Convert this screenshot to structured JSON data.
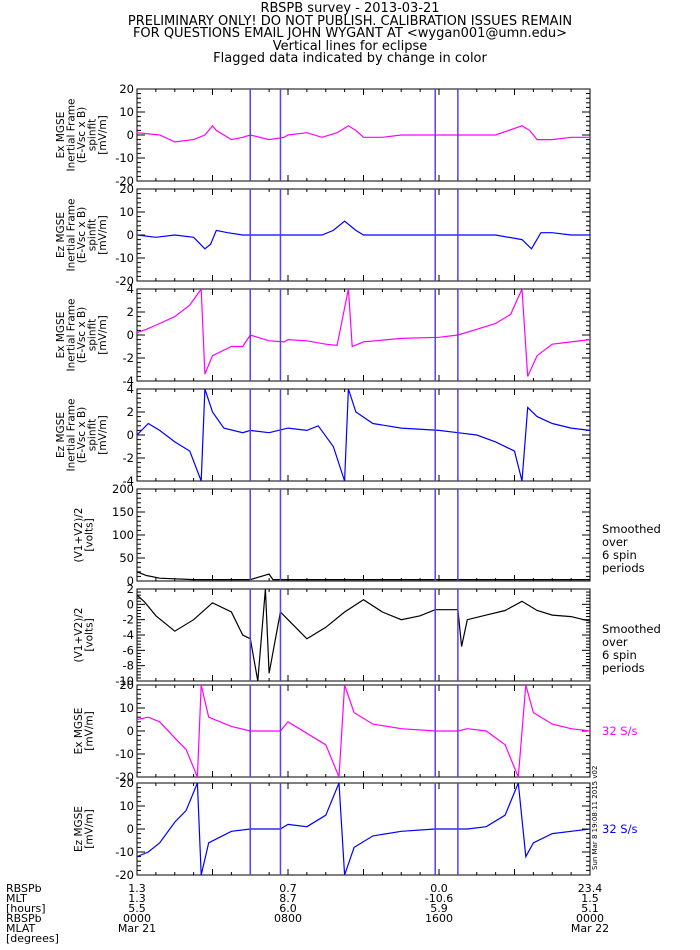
{
  "header": {
    "lines": [
      "RBSPB survey - 2013-03-21",
      "PRELIMINARY ONLY! DO NOT PUBLISH. CALIBRATION ISSUES REMAIN",
      "FOR QUESTIONS EMAIL JOHN WYGANT AT <wygan001@umn.edu>",
      "Vertical lines for eclipse",
      "Flagged data indicated by change in color"
    ]
  },
  "colors": {
    "magenta": "#ff00ff",
    "blue": "#0000ff",
    "black": "#000000",
    "eclipse": "#5a3cff"
  },
  "chart_data": {
    "type": "line",
    "x_unit": "hours UT",
    "xlim": [
      0,
      24
    ],
    "eclipse_lines": [
      6.0,
      7.6,
      15.8,
      17.0
    ],
    "panels": [
      {
        "id": "ex-inertial-20",
        "ylabel_lines": [
          "Ex MGSE",
          "Inertial Frame",
          "(E-Vsc x B)",
          "spinfit",
          "[mV/m]"
        ],
        "ylim": [
          -20,
          20
        ],
        "yticks": [
          "20",
          "10",
          "0",
          "-10",
          "-20"
        ],
        "color": "magenta",
        "series": [
          [
            0,
            1
          ],
          [
            1.2,
            0
          ],
          [
            2,
            -3
          ],
          [
            3,
            -2
          ],
          [
            3.6,
            0
          ],
          [
            4,
            4
          ],
          [
            4.2,
            2
          ],
          [
            5,
            -2
          ],
          [
            5.6,
            -1
          ],
          [
            6,
            0
          ],
          [
            7,
            -2
          ],
          [
            7.8,
            -1
          ],
          [
            8,
            0
          ],
          [
            9,
            1
          ],
          [
            9.8,
            -1
          ],
          [
            10.6,
            1
          ],
          [
            11.2,
            4
          ],
          [
            11.6,
            2
          ],
          [
            12,
            -1
          ],
          [
            13,
            -1
          ],
          [
            14,
            0
          ],
          [
            16,
            0
          ],
          [
            18,
            0
          ],
          [
            19,
            0
          ],
          [
            20.4,
            4
          ],
          [
            20.8,
            2
          ],
          [
            21.2,
            -2
          ],
          [
            22,
            -2
          ],
          [
            23,
            -1
          ],
          [
            24,
            -1
          ]
        ]
      },
      {
        "id": "ez-inertial-20",
        "ylabel_lines": [
          "Ez MGSE",
          "Inertial Frame",
          "(E-Vsc x B)",
          "spinfit",
          "[mV/m]"
        ],
        "ylim": [
          -20,
          20
        ],
        "yticks": [
          "20",
          "10",
          "0",
          "-10",
          "-20"
        ],
        "color": "blue",
        "series": [
          [
            0,
            0
          ],
          [
            1,
            -1
          ],
          [
            2,
            0
          ],
          [
            3,
            -1
          ],
          [
            3.6,
            -6
          ],
          [
            3.9,
            -4
          ],
          [
            4.2,
            2
          ],
          [
            4.8,
            1
          ],
          [
            5.6,
            0
          ],
          [
            6,
            0
          ],
          [
            7,
            0
          ],
          [
            8,
            0
          ],
          [
            9,
            0
          ],
          [
            9.8,
            0
          ],
          [
            10.4,
            2
          ],
          [
            11,
            6
          ],
          [
            11.6,
            2
          ],
          [
            12,
            0
          ],
          [
            14,
            0
          ],
          [
            16,
            0
          ],
          [
            18,
            0
          ],
          [
            19,
            0
          ],
          [
            20.4,
            -2
          ],
          [
            20.9,
            -6
          ],
          [
            21.4,
            1
          ],
          [
            22,
            1
          ],
          [
            23,
            0
          ],
          [
            24,
            0
          ]
        ]
      },
      {
        "id": "ex-inertial-4",
        "ylabel_lines": [
          "Ex MGSE",
          "Inertial Frame",
          "(E-Vsc x B)",
          "spinfit",
          "[mV/m]"
        ],
        "ylim": [
          -4,
          4
        ],
        "yticks": [
          "4",
          "2",
          "0",
          "-2",
          "-4"
        ],
        "color": "magenta",
        "series": [
          [
            0,
            0.2
          ],
          [
            0.5,
            0.5
          ],
          [
            1.2,
            1
          ],
          [
            2,
            1.6
          ],
          [
            2.8,
            2.6
          ],
          [
            3.4,
            4
          ],
          [
            3.6,
            -3.4
          ],
          [
            4,
            -1.8
          ],
          [
            5,
            -1
          ],
          [
            5.6,
            -1
          ],
          [
            6,
            0
          ],
          [
            7,
            -0.5
          ],
          [
            7.8,
            -0.6
          ],
          [
            8,
            -0.4
          ],
          [
            9,
            -0.5
          ],
          [
            10,
            -0.8
          ],
          [
            10.6,
            -0.9
          ],
          [
            11.2,
            4
          ],
          [
            11.4,
            -1
          ],
          [
            12,
            -0.6
          ],
          [
            14,
            -0.3
          ],
          [
            16,
            -0.2
          ],
          [
            17,
            0
          ],
          [
            18,
            0.5
          ],
          [
            19,
            1
          ],
          [
            19.8,
            1.8
          ],
          [
            20.4,
            4
          ],
          [
            20.7,
            -3.6
          ],
          [
            21.2,
            -1.8
          ],
          [
            22,
            -0.8
          ],
          [
            23,
            -0.6
          ],
          [
            24,
            -0.4
          ]
        ]
      },
      {
        "id": "ez-inertial-4",
        "ylabel_lines": [
          "Ez MGSE",
          "Inertial Frame",
          "(E-Vsc x B)",
          "spinfit",
          "[mV/m]"
        ],
        "ylim": [
          -4,
          4
        ],
        "yticks": [
          "4",
          "2",
          "0",
          "-2",
          "-4"
        ],
        "color": "blue",
        "series": [
          [
            0,
            0
          ],
          [
            0.6,
            1
          ],
          [
            1.2,
            0.4
          ],
          [
            2,
            -0.6
          ],
          [
            2.8,
            -1.4
          ],
          [
            3.4,
            -4
          ],
          [
            3.6,
            4
          ],
          [
            4,
            2
          ],
          [
            4.6,
            0.6
          ],
          [
            5.6,
            0.2
          ],
          [
            6,
            0.4
          ],
          [
            7,
            0.2
          ],
          [
            8,
            0.6
          ],
          [
            9,
            0.4
          ],
          [
            9.6,
            0.8
          ],
          [
            10.4,
            -1
          ],
          [
            11,
            -4
          ],
          [
            11.2,
            4
          ],
          [
            11.6,
            2
          ],
          [
            12.5,
            1
          ],
          [
            14,
            0.6
          ],
          [
            16,
            0.4
          ],
          [
            17,
            0.2
          ],
          [
            18,
            0
          ],
          [
            19,
            -0.6
          ],
          [
            20,
            -1.4
          ],
          [
            20.4,
            -4
          ],
          [
            20.7,
            2.4
          ],
          [
            21.2,
            1.6
          ],
          [
            22,
            1
          ],
          [
            23,
            0.6
          ],
          [
            24,
            0.4
          ]
        ]
      },
      {
        "id": "v1v2-200",
        "ylabel_lines": [
          "(V1+V2)/2",
          "[volts]"
        ],
        "ylim": [
          0,
          200
        ],
        "yticks": [
          "200",
          "150",
          "100",
          "50",
          "0"
        ],
        "color": "black",
        "note_lines": [
          "Smoothed",
          "over",
          "6 spin",
          "periods"
        ],
        "series": [
          [
            0,
            20
          ],
          [
            0.5,
            12
          ],
          [
            1.2,
            6
          ],
          [
            3,
            3
          ],
          [
            5,
            3
          ],
          [
            6,
            3
          ],
          [
            7,
            15
          ],
          [
            7.2,
            3
          ],
          [
            9,
            3
          ],
          [
            12,
            3
          ],
          [
            16,
            3
          ],
          [
            20,
            3
          ],
          [
            24,
            3
          ]
        ]
      },
      {
        "id": "v1v2-10",
        "ylabel_lines": [
          "(V1+V2)/2",
          "[volts]"
        ],
        "ylim": [
          -10,
          2
        ],
        "yticks": [
          "2",
          "0",
          "-2",
          "-4",
          "-6",
          "-8",
          "-10"
        ],
        "color": "black",
        "note_lines": [
          "Smoothed",
          "over",
          "6 spin",
          "periods"
        ],
        "series": [
          [
            0,
            1.2
          ],
          [
            0.4,
            0.3
          ],
          [
            1,
            -1.5
          ],
          [
            2,
            -3.5
          ],
          [
            3,
            -2
          ],
          [
            4,
            0.2
          ],
          [
            5,
            -1
          ],
          [
            5.6,
            -4
          ],
          [
            6,
            -4.5
          ],
          [
            6.4,
            -10
          ],
          [
            6.8,
            2
          ],
          [
            7,
            -9
          ],
          [
            7.6,
            -1
          ],
          [
            8,
            -2
          ],
          [
            9,
            -4.5
          ],
          [
            10,
            -3
          ],
          [
            11,
            -1
          ],
          [
            12,
            0.6
          ],
          [
            13,
            -1
          ],
          [
            14,
            -2
          ],
          [
            15,
            -1.5
          ],
          [
            15.8,
            -0.7
          ],
          [
            17,
            -0.7
          ],
          [
            17.2,
            -5.5
          ],
          [
            17.5,
            -2
          ],
          [
            18.5,
            -1.4
          ],
          [
            19.5,
            -0.8
          ],
          [
            20.4,
            0.4
          ],
          [
            21.2,
            -0.8
          ],
          [
            22,
            -1.4
          ],
          [
            23,
            -1.6
          ],
          [
            24,
            -2.2
          ]
        ]
      },
      {
        "id": "ex-32",
        "ylabel_lines": [
          "Ex MGSE",
          "[mV/m]"
        ],
        "ylim": [
          -20,
          20
        ],
        "yticks": [
          "20",
          "10",
          "0",
          "-10",
          "-20"
        ],
        "color": "magenta",
        "note_lines": [
          "32 S/s"
        ],
        "series": [
          [
            0,
            5
          ],
          [
            0.6,
            6
          ],
          [
            1.2,
            4
          ],
          [
            2,
            -3
          ],
          [
            2.6,
            -8
          ],
          [
            3.2,
            -20
          ],
          [
            3.4,
            20
          ],
          [
            3.8,
            6
          ],
          [
            5,
            2
          ],
          [
            6,
            0
          ],
          [
            7.6,
            0
          ],
          [
            8,
            4
          ],
          [
            9,
            -1
          ],
          [
            10,
            -6
          ],
          [
            10.7,
            -20
          ],
          [
            11,
            20
          ],
          [
            11.5,
            8
          ],
          [
            12.5,
            3
          ],
          [
            14,
            1
          ],
          [
            15.8,
            0
          ],
          [
            17,
            0
          ],
          [
            17.5,
            1
          ],
          [
            18.5,
            0
          ],
          [
            19.5,
            -6
          ],
          [
            20.2,
            -20
          ],
          [
            20.6,
            20
          ],
          [
            21,
            8
          ],
          [
            22,
            3
          ],
          [
            23,
            1
          ],
          [
            24,
            0
          ]
        ]
      },
      {
        "id": "ez-32",
        "ylabel_lines": [
          "Ez MGSE",
          "[mV/m]"
        ],
        "ylim": [
          -20,
          20
        ],
        "yticks": [
          "20",
          "10",
          "0",
          "-10",
          "-20"
        ],
        "color": "blue",
        "note_lines": [
          "32 S/s"
        ],
        "series": [
          [
            0,
            -12
          ],
          [
            0.6,
            -10
          ],
          [
            1.2,
            -6
          ],
          [
            2,
            3
          ],
          [
            2.6,
            8
          ],
          [
            3.2,
            20
          ],
          [
            3.4,
            -20
          ],
          [
            3.8,
            -6
          ],
          [
            5,
            -1
          ],
          [
            6,
            0
          ],
          [
            7.6,
            0
          ],
          [
            8,
            2
          ],
          [
            9,
            1
          ],
          [
            10,
            6
          ],
          [
            10.7,
            20
          ],
          [
            11,
            -20
          ],
          [
            11.5,
            -8
          ],
          [
            12.5,
            -3
          ],
          [
            14,
            -1
          ],
          [
            15.8,
            0
          ],
          [
            17,
            0
          ],
          [
            17.5,
            0
          ],
          [
            18.5,
            1
          ],
          [
            19.5,
            6
          ],
          [
            20.2,
            20
          ],
          [
            20.6,
            -12
          ],
          [
            21,
            -6
          ],
          [
            22,
            -2
          ],
          [
            23,
            -1
          ],
          [
            24,
            0
          ]
        ]
      }
    ],
    "x_axis": {
      "row_labels": [
        "RBSPb",
        "MLT",
        "[hours]",
        "RBSPb",
        "MLAT",
        "[degrees]"
      ],
      "columns": [
        {
          "x": 0,
          "values": [
            "1.3",
            "1.3",
            "5.5",
            "0000",
            "Mar 21"
          ]
        },
        {
          "x": 8,
          "values": [
            "0.7",
            "8.7",
            "6.0",
            "0800",
            ""
          ]
        },
        {
          "x": 16,
          "values": [
            "0.0",
            "-10.6",
            "5.9",
            "1600",
            ""
          ]
        },
        {
          "x": 24,
          "values": [
            "23.4",
            "1.5",
            "5.1",
            "0000",
            "Mar 22"
          ]
        }
      ]
    },
    "side_stamp": "Sun Mar 8 19:08:11 2015 v02"
  }
}
